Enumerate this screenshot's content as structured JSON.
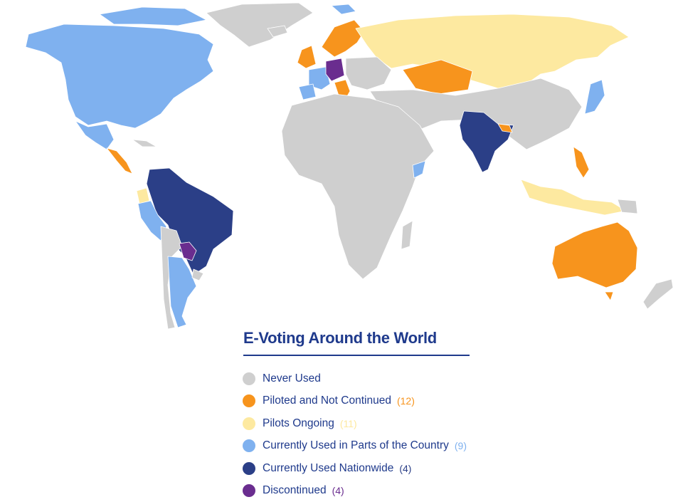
{
  "colors": {
    "never_used": "#cfcfcf",
    "piloted_not_continued": "#f7941d",
    "pilots_ongoing": "#fde9a0",
    "parts_of_country": "#7fb1ef",
    "nationwide": "#2b3f87",
    "discontinued": "#6a2d8f",
    "title": "#1f3a8c"
  },
  "legend": {
    "title": "E-Voting Around the World",
    "items": [
      {
        "label": "Never Used",
        "count": "",
        "color_key": "never_used"
      },
      {
        "label": "Piloted and Not Continued",
        "count": "(12)",
        "color_key": "piloted_not_continued"
      },
      {
        "label": "Pilots Ongoing",
        "count": "(11)",
        "color_key": "pilots_ongoing"
      },
      {
        "label": "Currently Used in Parts of the Country",
        "count": "(9)",
        "color_key": "parts_of_country"
      },
      {
        "label": "Currently Used Nationwide",
        "count": "(4)",
        "color_key": "nationwide"
      },
      {
        "label": "Discontinued",
        "count": "(4)",
        "color_key": "discontinued"
      }
    ]
  }
}
